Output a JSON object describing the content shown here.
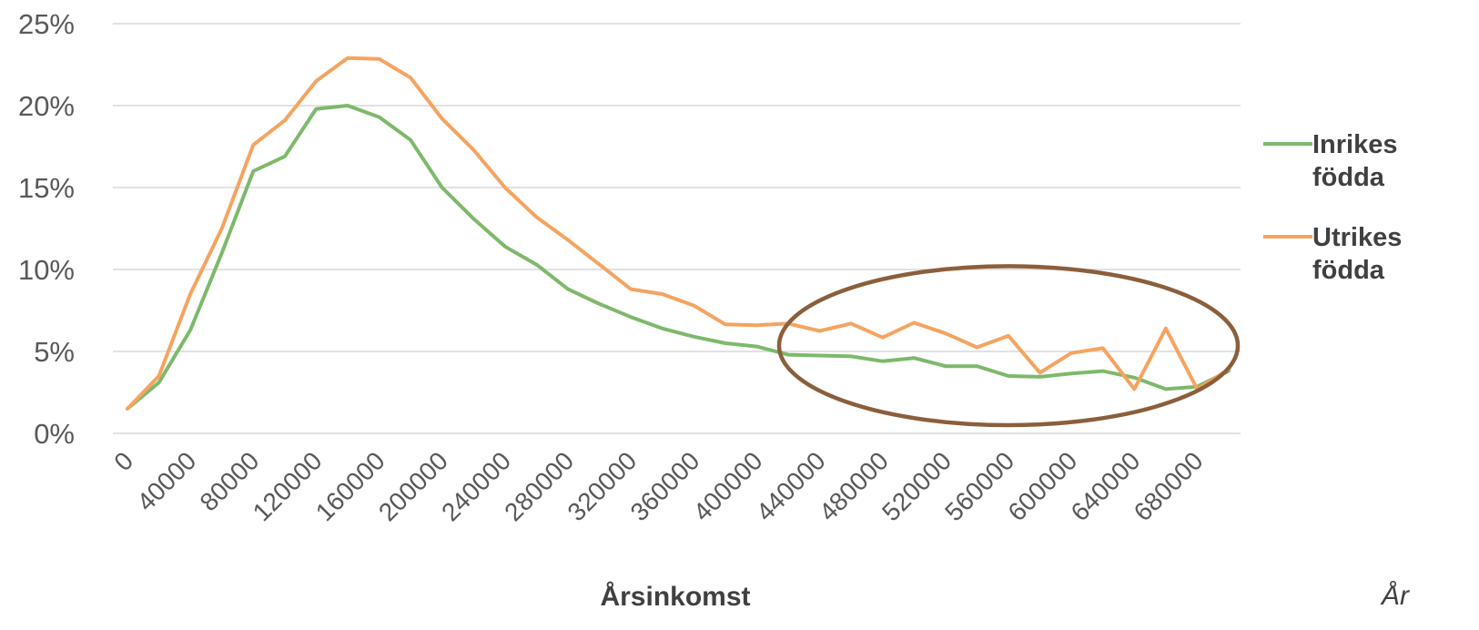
{
  "chart_data": {
    "type": "line",
    "x": [
      0,
      20000,
      40000,
      60000,
      80000,
      100000,
      120000,
      140000,
      160000,
      180000,
      200000,
      220000,
      240000,
      260000,
      280000,
      300000,
      320000,
      340000,
      360000,
      380000,
      400000,
      420000,
      440000,
      460000,
      480000,
      500000,
      520000,
      540000,
      560000,
      580000,
      600000,
      620000,
      640000,
      660000,
      680000,
      700000
    ],
    "x_tick_labels": [
      "0",
      "40000",
      "80000",
      "120000",
      "160000",
      "200000",
      "240000",
      "280000",
      "320000",
      "360000",
      "400000",
      "440000",
      "480000",
      "520000",
      "560000",
      "600000",
      "640000",
      "680000"
    ],
    "y_ticks": [
      0,
      5,
      10,
      15,
      20,
      25
    ],
    "y_tick_labels": [
      "0%",
      "5%",
      "10%",
      "15%",
      "20%",
      "25%"
    ],
    "ylim": [
      0,
      25
    ],
    "xlabel": "Årsinkomst",
    "ylabel": "",
    "grid": true,
    "legend_position": "right",
    "series": [
      {
        "name": "Inrikes födda",
        "name_lines": [
          "Inrikes",
          "födda"
        ],
        "color": "#7DB96B",
        "values": [
          1.5,
          3.1,
          6.3,
          11.0,
          16.0,
          16.9,
          19.8,
          20.0,
          19.3,
          17.9,
          15.0,
          13.1,
          11.4,
          10.3,
          8.8,
          7.9,
          7.1,
          6.4,
          5.9,
          5.5,
          5.3,
          4.8,
          4.75,
          4.7,
          4.4,
          4.6,
          4.1,
          4.1,
          3.5,
          3.45,
          3.65,
          3.8,
          3.4,
          2.7,
          2.85,
          3.8
        ]
      },
      {
        "name": "Utrikes födda",
        "name_lines": [
          "Utrikes",
          "födda"
        ],
        "color": "#F4A460",
        "values": [
          1.5,
          3.5,
          8.5,
          12.5,
          17.6,
          19.1,
          21.5,
          22.9,
          22.85,
          21.7,
          19.2,
          17.3,
          15.0,
          13.2,
          11.8,
          10.3,
          8.8,
          8.5,
          7.8,
          6.65,
          6.6,
          6.7,
          6.25,
          6.7,
          5.85,
          6.75,
          6.1,
          5.25,
          5.95,
          3.7,
          4.9,
          5.2,
          2.7,
          6.4,
          2.7,
          3.9
        ]
      }
    ],
    "annotation": {
      "shape": "ellipse",
      "color": "#8B5E3C",
      "x_range": [
        420000,
        700000
      ],
      "y_range": [
        0.5,
        10.2
      ]
    }
  },
  "corner_note": "År"
}
